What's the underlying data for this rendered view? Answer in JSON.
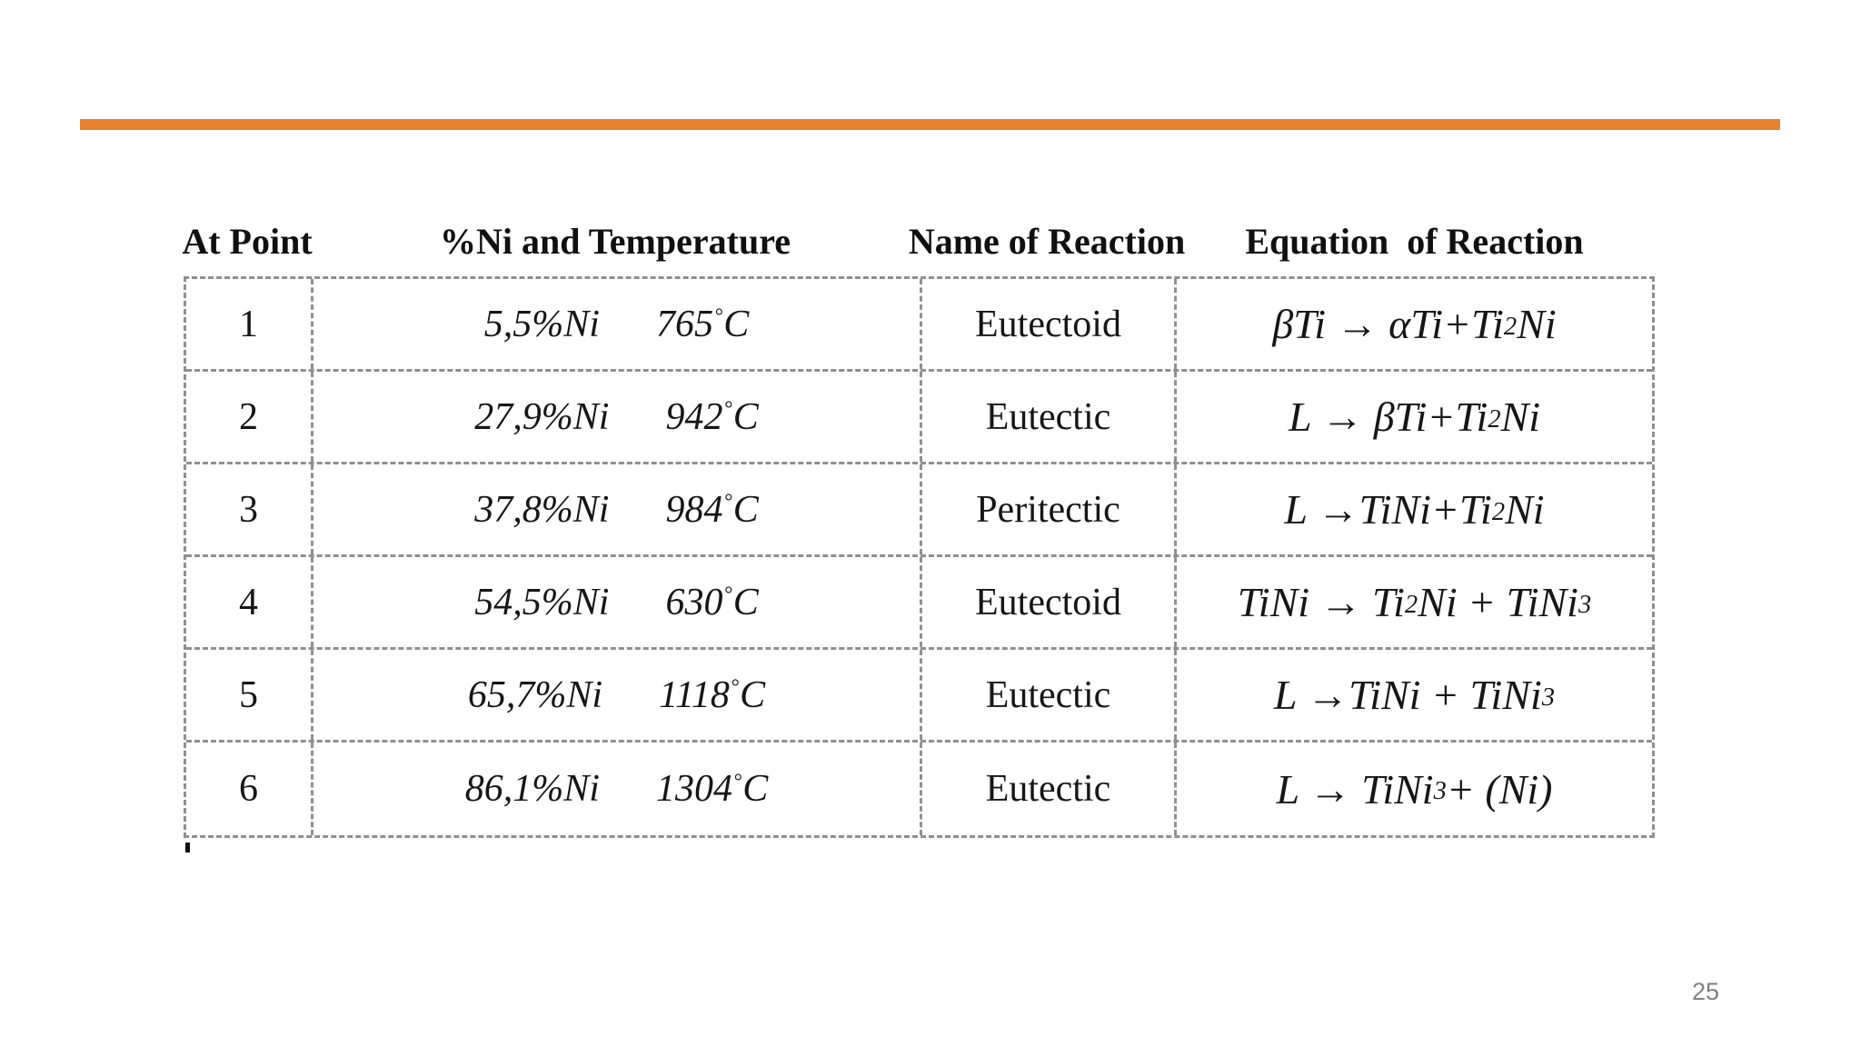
{
  "slide": {
    "page_number": "25"
  },
  "accent_bar": {
    "color": "#E8822F"
  },
  "table": {
    "headers": [
      "At Point",
      "%Ni and Temperature",
      "Name of Reaction",
      "Equation  of Reaction"
    ],
    "deg_symbol": "°",
    "temp_unit": "C",
    "rows": [
      {
        "point": "1",
        "ni": "5,5%Ni",
        "temp": "765",
        "reaction": "Eutectoid",
        "equation": "βTi → αTi+Ti₂Ni"
      },
      {
        "point": "2",
        "ni": "27,9%Ni",
        "temp": "942",
        "reaction": "Eutectic",
        "equation": "L → βTi+Ti₂Ni"
      },
      {
        "point": "3",
        "ni": "37,8%Ni",
        "temp": "984",
        "reaction": "Peritectic",
        "equation": "L →TiNi+Ti₂Ni"
      },
      {
        "point": "4",
        "ni": "54,5%Ni",
        "temp": "630",
        "reaction": "Eutectoid",
        "equation": "TiNi → Ti₂Ni + TiNi₃"
      },
      {
        "point": "5",
        "ni": "65,7%Ni",
        "temp": "1118",
        "reaction": "Eutectic",
        "equation": "L →TiNi + TiNi₃"
      },
      {
        "point": "6",
        "ni": "86,1%Ni",
        "temp": "1304",
        "reaction": "Eutectic",
        "equation": "L → TiNi₃ + (Ni)"
      }
    ]
  }
}
